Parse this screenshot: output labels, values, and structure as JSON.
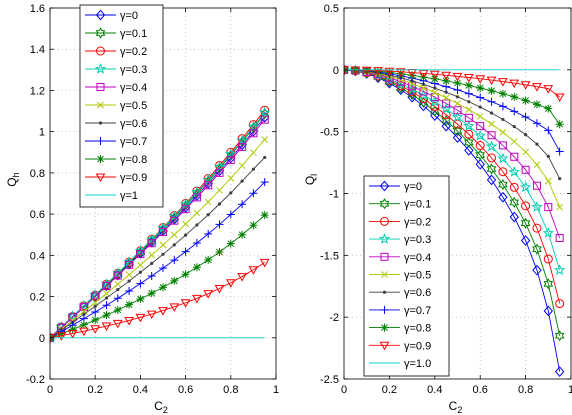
{
  "chart_data": [
    {
      "type": "line",
      "xlabel_main": "C",
      "xlabel_sub": "2",
      "ylabel_main": "Q",
      "ylabel_sub": "h",
      "xlim": [
        0,
        1
      ],
      "ylim": [
        -0.2,
        1.6
      ],
      "xticks": [
        0,
        0.2,
        0.4,
        0.6,
        0.8,
        1
      ],
      "xtick_labels": [
        "0",
        "0.2",
        "0.4",
        "0.6",
        "0.8",
        "1"
      ],
      "yticks": [
        -0.2,
        0,
        0.2,
        0.4,
        0.6,
        0.8,
        1,
        1.2,
        1.4,
        1.6
      ],
      "ytick_labels": [
        "-0.2",
        "0",
        "0.2",
        "0.4",
        "0.6",
        "0.8",
        "1",
        "1.2",
        "1.4",
        "1.6"
      ],
      "grid": true,
      "legend_position": "top-left",
      "x": [
        0,
        0.05,
        0.1,
        0.15,
        0.2,
        0.25,
        0.3,
        0.35,
        0.4,
        0.45,
        0.5,
        0.55,
        0.6,
        0.65,
        0.7,
        0.75,
        0.8,
        0.85,
        0.9,
        0.95
      ],
      "series": [
        {
          "name": "γ=0",
          "color": "#0000ff",
          "marker": "diamond",
          "values": [
            0,
            0.05,
            0.099,
            0.149,
            0.2,
            0.252,
            0.304,
            0.357,
            0.41,
            0.464,
            0.519,
            0.575,
            0.632,
            0.69,
            0.749,
            0.81,
            0.872,
            0.936,
            1.002,
            1.07
          ]
        },
        {
          "name": "γ=0.1",
          "color": "#008000",
          "marker": "hexagram",
          "values": [
            0,
            0.051,
            0.101,
            0.152,
            0.203,
            0.256,
            0.309,
            0.362,
            0.416,
            0.471,
            0.527,
            0.584,
            0.642,
            0.701,
            0.761,
            0.823,
            0.886,
            0.951,
            1.018,
            1.087
          ]
        },
        {
          "name": "γ=0.2",
          "color": "#ff0000",
          "marker": "circle",
          "values": [
            0,
            0.052,
            0.103,
            0.155,
            0.207,
            0.26,
            0.313,
            0.367,
            0.422,
            0.478,
            0.535,
            0.593,
            0.652,
            0.712,
            0.773,
            0.836,
            0.9,
            0.966,
            1.034,
            1.104
          ]
        },
        {
          "name": "γ=0.3",
          "color": "#00d0b0",
          "marker": "pentagram",
          "values": [
            0,
            0.052,
            0.104,
            0.156,
            0.208,
            0.261,
            0.314,
            0.368,
            0.422,
            0.477,
            0.533,
            0.59,
            0.648,
            0.707,
            0.767,
            0.829,
            0.892,
            0.957,
            1.024,
            1.093
          ]
        },
        {
          "name": "γ=0.4",
          "color": "#bf00bf",
          "marker": "square",
          "values": [
            0,
            0.049,
            0.099,
            0.149,
            0.2,
            0.251,
            0.302,
            0.354,
            0.406,
            0.459,
            0.513,
            0.568,
            0.624,
            0.681,
            0.74,
            0.8,
            0.862,
            0.926,
            0.992,
            1.058
          ]
        },
        {
          "name": "γ=0.5",
          "color": "#b0c800",
          "marker": "x",
          "values": [
            0,
            0.042,
            0.084,
            0.127,
            0.171,
            0.215,
            0.26,
            0.306,
            0.353,
            0.401,
            0.45,
            0.5,
            0.552,
            0.605,
            0.659,
            0.716,
            0.774,
            0.835,
            0.898,
            0.962
          ]
        },
        {
          "name": "γ=0.6",
          "color": "#404040",
          "marker": "dot",
          "values": [
            0,
            0.037,
            0.075,
            0.114,
            0.153,
            0.193,
            0.234,
            0.275,
            0.318,
            0.361,
            0.405,
            0.451,
            0.498,
            0.547,
            0.597,
            0.649,
            0.703,
            0.76,
            0.818,
            0.875
          ]
        },
        {
          "name": "γ=0.7",
          "color": "#0000ff",
          "marker": "plus",
          "values": [
            0,
            0.03,
            0.061,
            0.093,
            0.125,
            0.158,
            0.192,
            0.227,
            0.263,
            0.3,
            0.338,
            0.377,
            0.418,
            0.46,
            0.504,
            0.55,
            0.598,
            0.648,
            0.701,
            0.755
          ]
        },
        {
          "name": "γ=0.8",
          "color": "#008000",
          "marker": "asterisk",
          "values": [
            0,
            0.02,
            0.041,
            0.063,
            0.086,
            0.11,
            0.135,
            0.161,
            0.188,
            0.216,
            0.245,
            0.276,
            0.308,
            0.342,
            0.378,
            0.416,
            0.457,
            0.5,
            0.546,
            0.595
          ]
        },
        {
          "name": "γ=0.9",
          "color": "#ff0000",
          "marker": "triangle-down",
          "values": [
            0,
            0.01,
            0.021,
            0.032,
            0.044,
            0.057,
            0.07,
            0.084,
            0.099,
            0.115,
            0.132,
            0.15,
            0.17,
            0.191,
            0.214,
            0.239,
            0.267,
            0.297,
            0.33,
            0.366
          ]
        },
        {
          "name": "γ=1",
          "color": "#00d0d0",
          "marker": "none",
          "values": [
            0,
            0,
            0,
            0,
            0,
            0,
            0,
            0,
            0,
            0,
            0,
            0,
            0,
            0,
            0,
            0,
            0,
            0,
            0,
            0
          ]
        }
      ]
    },
    {
      "type": "line",
      "xlabel_main": "C",
      "xlabel_sub": "2",
      "ylabel_main": "Q",
      "ylabel_sub": "l",
      "xlim": [
        0,
        1
      ],
      "ylim": [
        -2.5,
        0.5
      ],
      "xticks": [
        0,
        0.2,
        0.4,
        0.6,
        0.8,
        1
      ],
      "xtick_labels": [
        "0",
        "0.2",
        "0.4",
        "0.6",
        "0.8",
        "1"
      ],
      "yticks": [
        -2.5,
        -2,
        -1.5,
        -1,
        -0.5,
        0,
        0.5
      ],
      "ytick_labels": [
        "-2.5",
        "-2",
        "-1.5",
        "-1",
        "-0.5",
        "0",
        "0.5"
      ],
      "grid": true,
      "legend_position": "bottom-left",
      "x": [
        0,
        0.05,
        0.1,
        0.15,
        0.2,
        0.25,
        0.3,
        0.35,
        0.4,
        0.45,
        0.5,
        0.55,
        0.6,
        0.65,
        0.7,
        0.75,
        0.8,
        0.85,
        0.9,
        0.95
      ],
      "series": [
        {
          "name": "γ=0",
          "color": "#0000ff",
          "marker": "diamond",
          "values": [
            0,
            -0.009,
            -0.03,
            -0.064,
            -0.108,
            -0.161,
            -0.222,
            -0.292,
            -0.37,
            -0.455,
            -0.548,
            -0.651,
            -0.764,
            -0.89,
            -1.03,
            -1.19,
            -1.38,
            -1.62,
            -1.95,
            -2.44
          ]
        },
        {
          "name": "γ=0.1",
          "color": "#008000",
          "marker": "hexagram",
          "values": [
            0,
            -0.008,
            -0.027,
            -0.057,
            -0.097,
            -0.145,
            -0.2,
            -0.263,
            -0.333,
            -0.41,
            -0.494,
            -0.587,
            -0.689,
            -0.802,
            -0.928,
            -1.072,
            -1.24,
            -1.45,
            -1.73,
            -2.15
          ]
        },
        {
          "name": "γ=0.2",
          "color": "#ff0000",
          "marker": "circle",
          "values": [
            0,
            -0.007,
            -0.024,
            -0.05,
            -0.086,
            -0.129,
            -0.178,
            -0.234,
            -0.296,
            -0.364,
            -0.439,
            -0.521,
            -0.612,
            -0.712,
            -0.824,
            -0.95,
            -1.1,
            -1.28,
            -1.53,
            -1.89
          ]
        },
        {
          "name": "γ=0.3",
          "color": "#00d0b0",
          "marker": "pentagram",
          "values": [
            0,
            -0.006,
            -0.021,
            -0.044,
            -0.075,
            -0.112,
            -0.155,
            -0.204,
            -0.258,
            -0.317,
            -0.382,
            -0.454,
            -0.533,
            -0.62,
            -0.717,
            -0.826,
            -0.95,
            -1.11,
            -1.32,
            -1.62
          ]
        },
        {
          "name": "γ=0.4",
          "color": "#bf00bf",
          "marker": "square",
          "values": [
            0,
            -0.005,
            -0.018,
            -0.038,
            -0.064,
            -0.096,
            -0.133,
            -0.175,
            -0.221,
            -0.272,
            -0.327,
            -0.388,
            -0.455,
            -0.529,
            -0.611,
            -0.703,
            -0.808,
            -0.937,
            -1.11,
            -1.36
          ]
        },
        {
          "name": "γ=0.5",
          "color": "#b0c800",
          "marker": "x",
          "values": [
            0,
            -0.004,
            -0.015,
            -0.031,
            -0.053,
            -0.08,
            -0.111,
            -0.146,
            -0.184,
            -0.226,
            -0.272,
            -0.322,
            -0.377,
            -0.438,
            -0.505,
            -0.579,
            -0.664,
            -0.767,
            -0.9,
            -1.11
          ]
        },
        {
          "name": "γ=0.6",
          "color": "#404040",
          "marker": "dot",
          "values": [
            0,
            -0.003,
            -0.012,
            -0.025,
            -0.043,
            -0.064,
            -0.089,
            -0.117,
            -0.148,
            -0.181,
            -0.218,
            -0.258,
            -0.301,
            -0.349,
            -0.401,
            -0.459,
            -0.524,
            -0.601,
            -0.7,
            -0.88
          ]
        },
        {
          "name": "γ=0.7",
          "color": "#0000ff",
          "marker": "plus",
          "values": [
            0,
            -0.003,
            -0.009,
            -0.019,
            -0.032,
            -0.048,
            -0.067,
            -0.088,
            -0.111,
            -0.136,
            -0.163,
            -0.192,
            -0.224,
            -0.258,
            -0.295,
            -0.336,
            -0.381,
            -0.432,
            -0.49,
            -0.66
          ]
        },
        {
          "name": "γ=0.8",
          "color": "#008000",
          "marker": "asterisk",
          "values": [
            0,
            -0.002,
            -0.006,
            -0.013,
            -0.021,
            -0.032,
            -0.044,
            -0.058,
            -0.073,
            -0.089,
            -0.107,
            -0.126,
            -0.147,
            -0.169,
            -0.193,
            -0.219,
            -0.248,
            -0.279,
            -0.314,
            -0.44
          ]
        },
        {
          "name": "γ=0.9",
          "color": "#ff0000",
          "marker": "triangle-down",
          "values": [
            0,
            -0.001,
            -0.003,
            -0.006,
            -0.011,
            -0.016,
            -0.022,
            -0.029,
            -0.036,
            -0.044,
            -0.053,
            -0.062,
            -0.072,
            -0.083,
            -0.095,
            -0.107,
            -0.121,
            -0.136,
            -0.152,
            -0.22
          ]
        },
        {
          "name": "γ=1.0",
          "color": "#00d0d0",
          "marker": "none",
          "values": [
            0,
            0,
            0,
            0,
            0,
            0,
            0,
            0,
            0,
            0,
            0,
            0,
            0,
            0,
            0,
            0,
            0,
            0,
            0,
            0
          ]
        }
      ]
    }
  ]
}
